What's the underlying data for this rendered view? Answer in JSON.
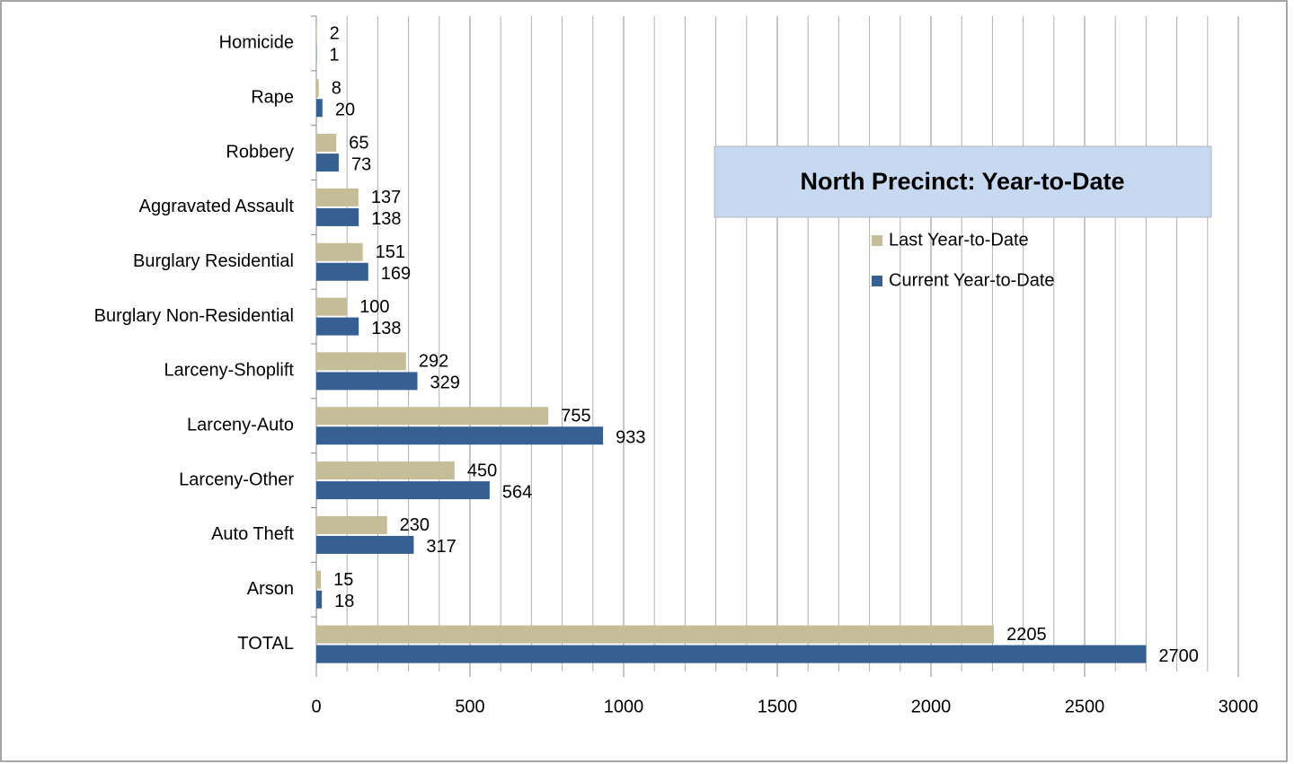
{
  "chart_data": {
    "type": "hbar",
    "title": "North Precinct: Year-to-Date",
    "categories": [
      "Homicide",
      "Rape",
      "Robbery",
      "Aggravated Assault",
      "Burglary Residential",
      "Burglary Non-Residential",
      "Larceny-Shoplift",
      "Larceny-Auto",
      "Larceny-Other",
      "Auto Theft",
      "Arson",
      "TOTAL"
    ],
    "series": [
      {
        "name": "Last Year-to-Date",
        "color": "#c4bd97",
        "values": [
          2,
          8,
          65,
          137,
          151,
          100,
          292,
          755,
          450,
          230,
          15,
          2205
        ]
      },
      {
        "name": "Current Year-to-Date",
        "color": "#376092",
        "values": [
          1,
          20,
          73,
          138,
          169,
          138,
          329,
          933,
          564,
          317,
          18,
          2700
        ]
      }
    ],
    "xlim": [
      0,
      3000
    ],
    "xticks": [
      0,
      500,
      1000,
      1500,
      2000,
      2500,
      3000
    ],
    "minor_xticks": [
      100,
      200,
      300,
      400,
      600,
      700,
      800,
      900,
      1100,
      1200,
      1300,
      1400,
      1600,
      1700,
      1800,
      1900,
      2100,
      2200,
      2300,
      2400,
      2600,
      2700,
      2800,
      2900
    ],
    "grid": true
  }
}
